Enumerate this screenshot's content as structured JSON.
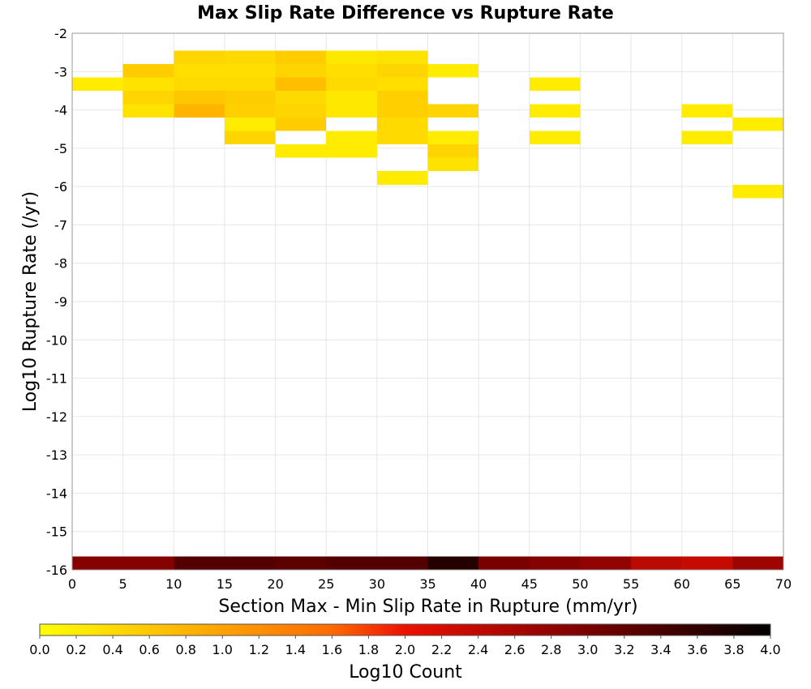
{
  "chart_data": {
    "type": "heatmap",
    "title": "Max Slip Rate Difference vs Rupture Rate",
    "xlabel": "Section Max - Min Slip Rate in Rupture (mm/yr)",
    "ylabel": "Log10 Rupture Rate (/yr)",
    "xlim": [
      0,
      70
    ],
    "ylim": [
      -16,
      -2
    ],
    "x_ticks": [
      0,
      5,
      10,
      15,
      20,
      25,
      30,
      35,
      40,
      45,
      50,
      55,
      60,
      65,
      70
    ],
    "y_ticks": [
      -2,
      -3,
      -4,
      -5,
      -6,
      -7,
      -8,
      -9,
      -10,
      -11,
      -12,
      -13,
      -14,
      -15,
      -16
    ],
    "cell_width": 5,
    "cell_height": 0.35,
    "cells": [
      {
        "x": 0,
        "y": -3.5,
        "value": 0.2
      },
      {
        "x": 5,
        "y": -3.15,
        "value": 0.55
      },
      {
        "x": 5,
        "y": -3.5,
        "value": 0.3
      },
      {
        "x": 5,
        "y": -3.85,
        "value": 0.45
      },
      {
        "x": 5,
        "y": -4.2,
        "value": 0.3
      },
      {
        "x": 10,
        "y": -2.8,
        "value": 0.45
      },
      {
        "x": 10,
        "y": -3.15,
        "value": 0.35
      },
      {
        "x": 10,
        "y": -3.5,
        "value": 0.4
      },
      {
        "x": 10,
        "y": -3.85,
        "value": 0.6
      },
      {
        "x": 10,
        "y": -4.2,
        "value": 0.8
      },
      {
        "x": 15,
        "y": -2.8,
        "value": 0.4
      },
      {
        "x": 15,
        "y": -3.15,
        "value": 0.35
      },
      {
        "x": 15,
        "y": -3.5,
        "value": 0.4
      },
      {
        "x": 15,
        "y": -3.85,
        "value": 0.55
      },
      {
        "x": 15,
        "y": -4.2,
        "value": 0.5
      },
      {
        "x": 15,
        "y": -4.55,
        "value": 0.2
      },
      {
        "x": 15,
        "y": -4.9,
        "value": 0.45
      },
      {
        "x": 20,
        "y": -2.8,
        "value": 0.55
      },
      {
        "x": 20,
        "y": -3.15,
        "value": 0.45
      },
      {
        "x": 20,
        "y": -3.5,
        "value": 0.7
      },
      {
        "x": 20,
        "y": -3.85,
        "value": 0.4
      },
      {
        "x": 20,
        "y": -4.2,
        "value": 0.45
      },
      {
        "x": 20,
        "y": -4.55,
        "value": 0.55
      },
      {
        "x": 20,
        "y": -5.25,
        "value": 0.2
      },
      {
        "x": 25,
        "y": -2.8,
        "value": 0.25
      },
      {
        "x": 25,
        "y": -3.15,
        "value": 0.35
      },
      {
        "x": 25,
        "y": -3.5,
        "value": 0.4
      },
      {
        "x": 25,
        "y": -3.85,
        "value": 0.25
      },
      {
        "x": 25,
        "y": -4.2,
        "value": 0.25
      },
      {
        "x": 25,
        "y": -4.9,
        "value": 0.2
      },
      {
        "x": 25,
        "y": -5.25,
        "value": 0.2
      },
      {
        "x": 30,
        "y": -2.8,
        "value": 0.3
      },
      {
        "x": 30,
        "y": -3.15,
        "value": 0.45
      },
      {
        "x": 30,
        "y": -3.5,
        "value": 0.35
      },
      {
        "x": 30,
        "y": -3.85,
        "value": 0.5
      },
      {
        "x": 30,
        "y": -4.2,
        "value": 0.5
      },
      {
        "x": 30,
        "y": -4.55,
        "value": 0.4
      },
      {
        "x": 30,
        "y": -4.9,
        "value": 0.4
      },
      {
        "x": 30,
        "y": -5.95,
        "value": 0.2
      },
      {
        "x": 35,
        "y": -3.15,
        "value": 0.2
      },
      {
        "x": 35,
        "y": -4.2,
        "value": 0.45
      },
      {
        "x": 35,
        "y": -4.9,
        "value": 0.2
      },
      {
        "x": 35,
        "y": -5.25,
        "value": 0.45
      },
      {
        "x": 35,
        "y": -5.6,
        "value": 0.3
      },
      {
        "x": 45,
        "y": -3.5,
        "value": 0.2
      },
      {
        "x": 45,
        "y": -4.2,
        "value": 0.2
      },
      {
        "x": 45,
        "y": -4.9,
        "value": 0.2
      },
      {
        "x": 60,
        "y": -4.2,
        "value": 0.2
      },
      {
        "x": 60,
        "y": -4.9,
        "value": 0.2
      },
      {
        "x": 65,
        "y": -4.55,
        "value": 0.2
      },
      {
        "x": 65,
        "y": -6.3,
        "value": 0.2
      },
      {
        "x": 0,
        "y": -16,
        "value": 2.9
      },
      {
        "x": 5,
        "y": -16,
        "value": 2.9
      },
      {
        "x": 10,
        "y": -16,
        "value": 3.3
      },
      {
        "x": 15,
        "y": -16,
        "value": 3.3
      },
      {
        "x": 20,
        "y": -16,
        "value": 3.25
      },
      {
        "x": 25,
        "y": -16,
        "value": 3.3
      },
      {
        "x": 30,
        "y": -16,
        "value": 3.3
      },
      {
        "x": 35,
        "y": -16,
        "value": 3.7
      },
      {
        "x": 40,
        "y": -16,
        "value": 3.0
      },
      {
        "x": 45,
        "y": -16,
        "value": 2.9
      },
      {
        "x": 50,
        "y": -16,
        "value": 2.8
      },
      {
        "x": 55,
        "y": -16,
        "value": 2.45
      },
      {
        "x": 60,
        "y": -16,
        "value": 2.35
      },
      {
        "x": 65,
        "y": -16,
        "value": 2.7
      }
    ],
    "colorbar": {
      "label": "Log10 Count",
      "range": [
        0.0,
        4.0
      ],
      "ticks": [
        "0.0",
        "0.2",
        "0.4",
        "0.6",
        "0.8",
        "1.0",
        "1.2",
        "1.4",
        "1.6",
        "1.8",
        "2.0",
        "2.2",
        "2.4",
        "2.6",
        "2.8",
        "3.0",
        "3.2",
        "3.4",
        "3.6",
        "3.8",
        "4.0"
      ],
      "stops": [
        {
          "value": 0.0,
          "color": "#ffff00"
        },
        {
          "value": 1.6,
          "color": "#ff6a00"
        },
        {
          "value": 2.0,
          "color": "#ee1000"
        },
        {
          "value": 3.0,
          "color": "#7a0000"
        },
        {
          "value": 4.0,
          "color": "#000000"
        }
      ]
    },
    "grid": true
  }
}
